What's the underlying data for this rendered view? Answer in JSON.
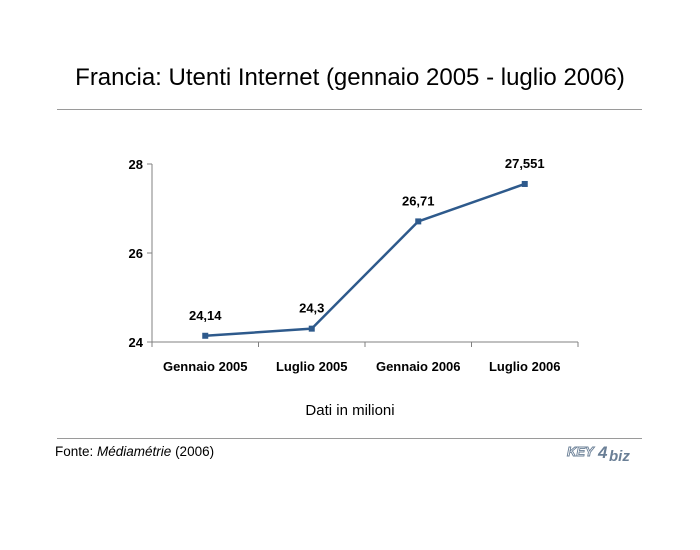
{
  "title": "Francia: Utenti Internet (gennaio 2005 - luglio 2006)",
  "note": "Dati in milioni",
  "source": {
    "prefix": "Fonte: ",
    "name": "Médiamétrie",
    "suffix": " (2006)"
  },
  "logo": {
    "text_key": "KEY",
    "text_num": "4",
    "text_biz": "biz"
  },
  "colors": {
    "line": "#2e5a8c",
    "axis": "#808080",
    "text": "#000000"
  },
  "chart_data": {
    "type": "line",
    "categories": [
      "Gennaio 2005",
      "Luglio 2005",
      "Gennaio 2006",
      "Luglio 2006"
    ],
    "values": [
      24.14,
      24.3,
      26.71,
      27.551
    ],
    "labels": [
      "24,14",
      "24,3",
      "26,71",
      "27,551"
    ],
    "yticks": [
      "24",
      "26",
      "28"
    ],
    "ytick_values": [
      24,
      26,
      28
    ],
    "ylim": [
      24,
      28
    ],
    "grid": false,
    "legend": "none"
  }
}
